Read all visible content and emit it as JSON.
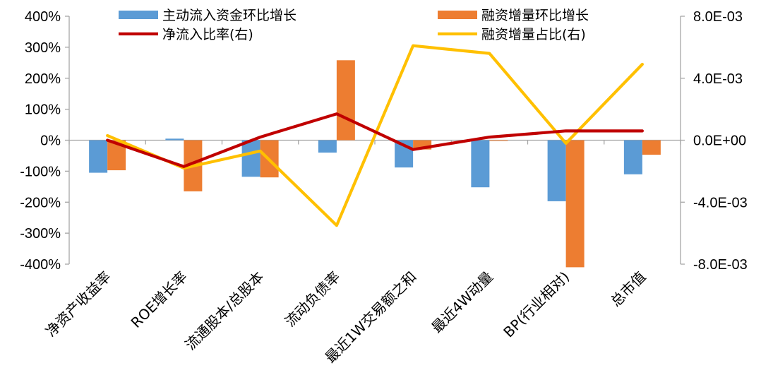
{
  "chart_data": {
    "type": "bar",
    "categories": [
      "净资产收益率",
      "ROE增长率",
      "流通股本/总股本",
      "流动负债率",
      "最近1W交易额之和",
      "最近4W动量",
      "BP(行业相对)",
      "总市值"
    ],
    "series": [
      {
        "name": "主动流入资金环比增长",
        "kind": "bar",
        "axis": "left",
        "color": "#5B9BD5",
        "values": [
          -1.05,
          0.05,
          -1.18,
          -0.4,
          -0.88,
          -1.52,
          -1.97,
          -1.1
        ]
      },
      {
        "name": "融资增量环比增长",
        "kind": "bar",
        "axis": "left",
        "color": "#ED7D31",
        "values": [
          -0.97,
          -1.65,
          -1.2,
          2.58,
          -0.3,
          -0.02,
          -4.1,
          -0.47
        ]
      },
      {
        "name": "净流入比率(右)",
        "kind": "line",
        "axis": "right",
        "color": "#C00000",
        "values": [
          0.0,
          -0.0017,
          0.0002,
          0.0017,
          -0.0006,
          0.0002,
          0.0006,
          0.0006
        ]
      },
      {
        "name": "融资增量占比(右)",
        "kind": "line",
        "axis": "right",
        "color": "#FFC000",
        "values": [
          0.0003,
          -0.0018,
          -0.0007,
          -0.0055,
          0.0061,
          0.0056,
          -0.0002,
          0.0049
        ]
      }
    ],
    "y_left": {
      "min": -4,
      "max": 4,
      "ticks": [
        4,
        3,
        2,
        1,
        0,
        -1,
        -2,
        -3,
        -4
      ],
      "tick_labels": [
        "400%",
        "300%",
        "200%",
        "100%",
        "0%",
        "-100%",
        "-200%",
        "-300%",
        "-400%"
      ]
    },
    "y_right": {
      "min": -0.008,
      "max": 0.008,
      "ticks": [
        0.008,
        0.004,
        0,
        -0.004,
        -0.008
      ],
      "tick_labels": [
        "8.0E-03",
        "4.0E-03",
        "0.0E+00",
        "-4.0E-03",
        "-8.0E-03"
      ]
    },
    "grid": false,
    "legend_position": "top"
  }
}
